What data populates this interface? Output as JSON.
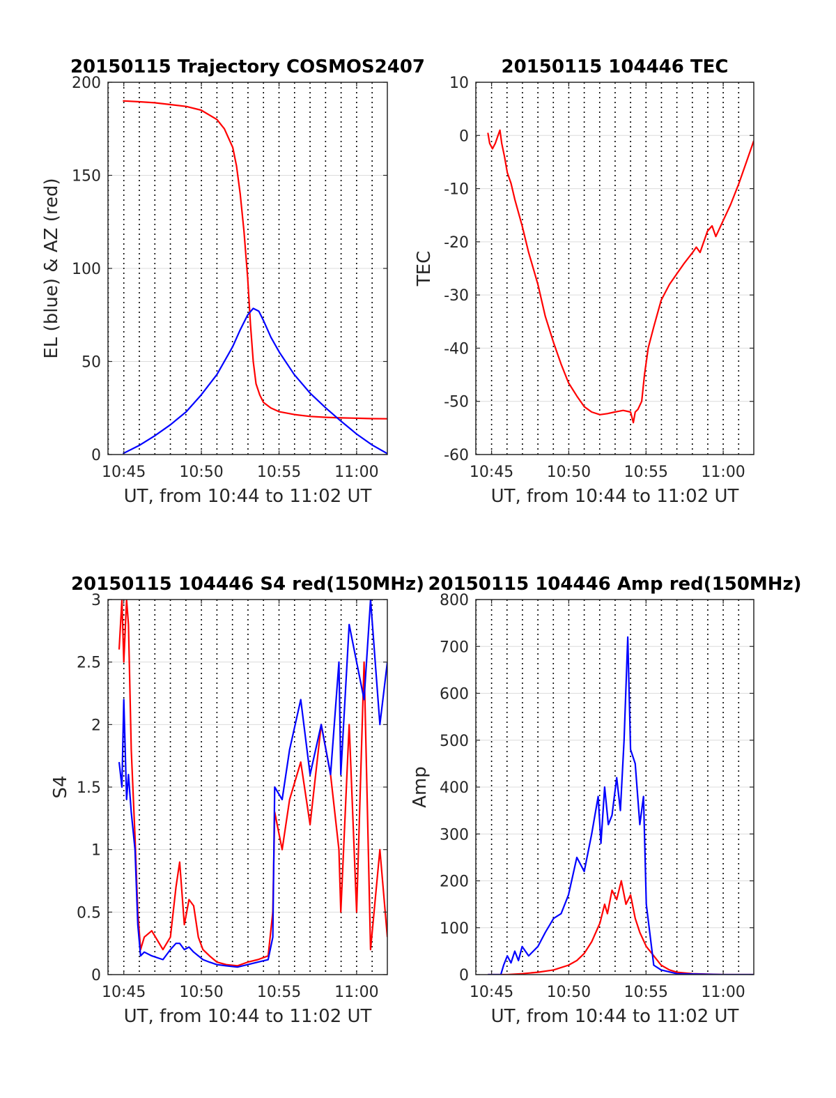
{
  "chart_data": [
    {
      "type": "line",
      "title": "20150115 Trajectory COSMOS2407",
      "xlabel": "UT, from 10:44 to 11:02 UT",
      "ylabel": "EL (blue) & AZ (red)",
      "xlim": [
        10.733,
        11.033
      ],
      "ylim": [
        0,
        200
      ],
      "xticks": [
        10.75,
        10.8333,
        10.9167,
        11.0
      ],
      "xticklabels": [
        "10:45",
        "10:50",
        "10:55",
        "11:00"
      ],
      "yticks": [
        0,
        50,
        100,
        150,
        200
      ],
      "yticklabels": [
        "0",
        "50",
        "100",
        "150",
        "200"
      ],
      "grid": true,
      "vertical_dotted_every_min": true,
      "series": [
        {
          "color": "#ff0000",
          "x": [
            10.749,
            10.767,
            10.783,
            10.8,
            10.817,
            10.833,
            10.85,
            10.858,
            10.867,
            10.871,
            10.875,
            10.879,
            10.883,
            10.886,
            10.889,
            10.892,
            10.896,
            10.9,
            10.908,
            10.917,
            10.933,
            10.95,
            10.967,
            10.983,
            11.0,
            11.017,
            11.033
          ],
          "y": [
            190,
            189.5,
            189,
            188,
            187,
            185,
            180,
            175,
            165,
            155,
            140,
            120,
            95,
            70,
            50,
            38,
            32,
            28,
            25,
            23,
            21.5,
            20.5,
            20,
            19.7,
            19.5,
            19.3,
            19.2
          ]
        },
        {
          "color": "#0000ff",
          "x": [
            10.749,
            10.767,
            10.783,
            10.8,
            10.817,
            10.833,
            10.85,
            10.867,
            10.875,
            10.883,
            10.889,
            10.895,
            10.9,
            10.908,
            10.917,
            10.933,
            10.95,
            10.967,
            10.983,
            11.0,
            11.017,
            11.033
          ],
          "y": [
            0.5,
            5,
            10,
            16,
            23,
            32,
            43,
            58,
            67,
            75,
            78.5,
            77,
            72,
            63,
            55,
            43,
            33,
            25,
            18,
            11,
            5,
            0.5
          ]
        }
      ]
    },
    {
      "type": "line",
      "title": "20150115 104446 TEC",
      "xlabel": "UT, from 10:44 to 11:02 UT",
      "ylabel": "TEC",
      "xlim": [
        10.733,
        11.033
      ],
      "ylim": [
        -60,
        10
      ],
      "xticks": [
        10.75,
        10.8333,
        10.9167,
        11.0
      ],
      "xticklabels": [
        "10:45",
        "10:50",
        "10:55",
        "11:00"
      ],
      "yticks": [
        -60,
        -50,
        -40,
        -30,
        -20,
        -10,
        0,
        10
      ],
      "yticklabels": [
        "-60",
        "-50",
        "-40",
        "-30",
        "-20",
        "-10",
        "0",
        "10"
      ],
      "grid": true,
      "vertical_dotted_every_min": true,
      "series": [
        {
          "color": "#ff0000",
          "x": [
            10.746,
            10.748,
            10.751,
            10.754,
            10.757,
            10.759,
            10.761,
            10.764,
            10.767,
            10.771,
            10.775,
            10.783,
            10.79,
            10.8,
            10.808,
            10.817,
            10.825,
            10.833,
            10.842,
            10.85,
            10.858,
            10.867,
            10.875,
            10.883,
            10.892,
            10.9,
            10.903,
            10.905,
            10.908,
            10.912,
            10.915,
            10.919,
            10.925,
            10.933,
            10.942,
            10.95,
            10.958,
            10.967,
            10.971,
            10.975,
            10.979,
            10.983,
            10.988,
            10.992,
            11.0,
            11.008,
            11.017,
            11.025,
            11.033
          ],
          "y": [
            0.5,
            -1.5,
            -2.5,
            -1.5,
            0,
            1,
            -1.5,
            -4,
            -7,
            -9,
            -12,
            -17,
            -22,
            -28,
            -34,
            -39,
            -43,
            -46.5,
            -49,
            -51,
            -52,
            -52.5,
            -52.3,
            -52,
            -51.7,
            -52,
            -54,
            -52,
            -51.5,
            -50,
            -45,
            -40,
            -36,
            -31,
            -28,
            -26,
            -24,
            -22,
            -21,
            -22,
            -20,
            -18,
            -17,
            -19,
            -16,
            -13,
            -9,
            -5,
            -1
          ]
        }
      ]
    },
    {
      "type": "line",
      "title": "20150115 104446 S4 red(150MHz)",
      "xlabel": "UT, from 10:44 to 11:02 UT",
      "ylabel": "S4",
      "xlim": [
        10.733,
        11.033
      ],
      "ylim": [
        0,
        3
      ],
      "xticks": [
        10.75,
        10.8333,
        10.9167,
        11.0
      ],
      "xticklabels": [
        "10:45",
        "10:50",
        "10:55",
        "11:00"
      ],
      "yticks": [
        0,
        0.5,
        1,
        1.5,
        2,
        2.5,
        3
      ],
      "yticklabels": [
        "0",
        "0.5",
        "1",
        "1.5",
        "2",
        "2.5",
        "3"
      ],
      "grid": true,
      "vertical_dotted_every_min": true,
      "series": [
        {
          "color": "#ff0000",
          "x": [
            10.745,
            10.748,
            10.75,
            10.753,
            10.755,
            10.758,
            10.762,
            10.765,
            10.768,
            10.772,
            10.78,
            10.792,
            10.8,
            10.806,
            10.81,
            10.815,
            10.82,
            10.825,
            10.83,
            10.835,
            10.842,
            10.85,
            10.86,
            10.872,
            10.883,
            10.894,
            10.905,
            10.91,
            10.912,
            10.92,
            10.928,
            10.94,
            10.95,
            10.962,
            10.972,
            10.981,
            10.983,
            10.992,
            11.0,
            11.008,
            11.015,
            11.025,
            11.033
          ],
          "y": [
            2.6,
            3.0,
            2.5,
            3.0,
            2.8,
            1.8,
            1.1,
            0.5,
            0.2,
            0.3,
            0.35,
            0.2,
            0.3,
            0.7,
            0.9,
            0.4,
            0.6,
            0.55,
            0.3,
            0.2,
            0.15,
            0.1,
            0.08,
            0.07,
            0.1,
            0.12,
            0.15,
            0.5,
            1.3,
            1.0,
            1.4,
            1.7,
            1.2,
            2.0,
            1.6,
            1.0,
            0.5,
            2.0,
            0.5,
            2.5,
            0.2,
            1.0,
            0.3
          ]
        },
        {
          "color": "#0000ff",
          "x": [
            10.745,
            10.748,
            10.75,
            10.753,
            10.755,
            10.758,
            10.762,
            10.765,
            10.768,
            10.772,
            10.78,
            10.792,
            10.8,
            10.806,
            10.81,
            10.815,
            10.82,
            10.825,
            10.83,
            10.835,
            10.842,
            10.85,
            10.86,
            10.872,
            10.883,
            10.894,
            10.905,
            10.91,
            10.912,
            10.92,
            10.928,
            10.94,
            10.95,
            10.962,
            10.972,
            10.981,
            10.983,
            10.992,
            11.0,
            11.008,
            11.015,
            11.025,
            11.033
          ],
          "y": [
            1.7,
            1.5,
            2.2,
            1.4,
            1.6,
            1.3,
            1.0,
            0.4,
            0.15,
            0.18,
            0.15,
            0.12,
            0.2,
            0.25,
            0.25,
            0.2,
            0.22,
            0.18,
            0.15,
            0.12,
            0.1,
            0.08,
            0.07,
            0.06,
            0.08,
            0.1,
            0.12,
            0.3,
            1.5,
            1.4,
            1.8,
            2.2,
            1.6,
            2.0,
            1.6,
            2.5,
            1.6,
            2.8,
            2.5,
            2.2,
            3.0,
            2.0,
            2.5
          ]
        }
      ]
    },
    {
      "type": "line",
      "title": "20150115 104446 Amp red(150MHz)",
      "xlabel": "UT, from 10:44 to 11:02 UT",
      "ylabel": "Amp",
      "xlim": [
        10.733,
        11.033
      ],
      "ylim": [
        0,
        800
      ],
      "xticks": [
        10.75,
        10.8333,
        10.9167,
        11.0
      ],
      "xticklabels": [
        "10:45",
        "10:50",
        "10:55",
        "11:00"
      ],
      "yticks": [
        0,
        100,
        200,
        300,
        400,
        500,
        600,
        700,
        800
      ],
      "yticklabels": [
        "0",
        "100",
        "200",
        "300",
        "400",
        "500",
        "600",
        "700",
        "800"
      ],
      "grid": true,
      "vertical_dotted_every_min": true,
      "series": [
        {
          "color": "#ff0000",
          "x": [
            10.746,
            10.767,
            10.783,
            10.8,
            10.817,
            10.833,
            10.842,
            10.85,
            10.858,
            10.867,
            10.872,
            10.875,
            10.88,
            10.885,
            10.89,
            10.895,
            10.9,
            10.905,
            10.91,
            10.917,
            10.925,
            10.933,
            10.942,
            10.95,
            10.967,
            10.983,
            11.0,
            11.017,
            11.033
          ],
          "y": [
            0,
            0,
            2,
            5,
            10,
            20,
            30,
            45,
            70,
            110,
            150,
            130,
            180,
            160,
            200,
            150,
            170,
            120,
            90,
            60,
            40,
            20,
            10,
            5,
            2,
            1,
            0,
            0,
            0
          ]
        },
        {
          "color": "#0000ff",
          "x": [
            10.746,
            10.76,
            10.763,
            10.767,
            10.771,
            10.775,
            10.779,
            10.783,
            10.79,
            10.8,
            10.808,
            10.817,
            10.825,
            10.833,
            10.842,
            10.85,
            10.858,
            10.865,
            10.868,
            10.872,
            10.876,
            10.88,
            10.885,
            10.889,
            10.893,
            10.897,
            10.9,
            10.905,
            10.91,
            10.914,
            10.917,
            10.925,
            10.933,
            10.95,
            11.0,
            11.033
          ],
          "y": [
            0,
            0,
            20,
            40,
            25,
            50,
            30,
            60,
            40,
            60,
            90,
            120,
            130,
            170,
            250,
            220,
            300,
            380,
            280,
            400,
            320,
            340,
            420,
            350,
            500,
            720,
            480,
            450,
            320,
            380,
            150,
            20,
            10,
            2,
            0,
            0
          ]
        }
      ]
    }
  ]
}
